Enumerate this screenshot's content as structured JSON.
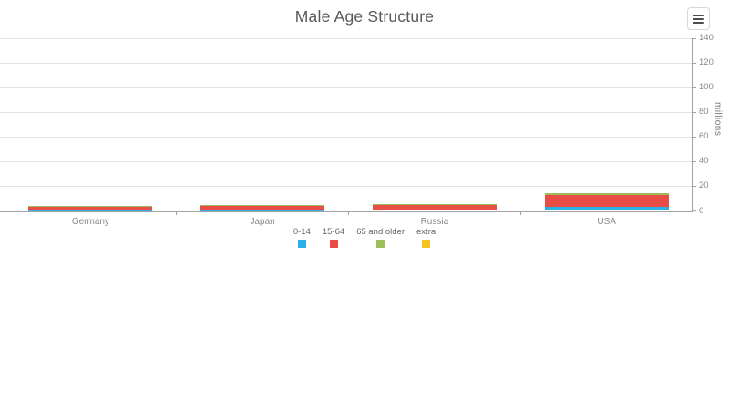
{
  "header": {
    "title": "Male Age Structure"
  },
  "export_menu": {
    "icon": "hamburger-icon"
  },
  "chart_data": {
    "type": "bar",
    "stacked": true,
    "title": "Male Age Structure",
    "categories": [
      "Germany",
      "Japan",
      "Russia",
      "USA"
    ],
    "series": [
      {
        "name": "0-14",
        "color": "#2AB1E8",
        "values": [
          0.2,
          0.2,
          0.8,
          3.2
        ]
      },
      {
        "name": "15-64",
        "color": "#EA4C46",
        "values": [
          3.1,
          3.6,
          4.5,
          9.5
        ]
      },
      {
        "name": "65 and older",
        "color": "#9CBE5B",
        "values": [
          0.8,
          0.9,
          0.6,
          1.6
        ]
      },
      {
        "name": "extra",
        "color": "#F6C41C",
        "values": [
          0,
          0,
          0,
          0
        ]
      }
    ],
    "xlabel": "",
    "ylabel": "millions",
    "ylim": [
      0,
      140
    ],
    "ytick_interval": 20,
    "ytick_labels": [
      "0",
      "20",
      "40",
      "60",
      "80",
      "100",
      "120",
      "140"
    ],
    "grid": true,
    "legend_position": "bottom",
    "y_axis_side": "right"
  },
  "colors": {
    "gridline": "#e4e4e4",
    "axis_line": "#a3a3a3",
    "tick_label": "#888888",
    "category_label": "#8a8a8a",
    "title": "#58595b",
    "background": "#ffffff"
  }
}
